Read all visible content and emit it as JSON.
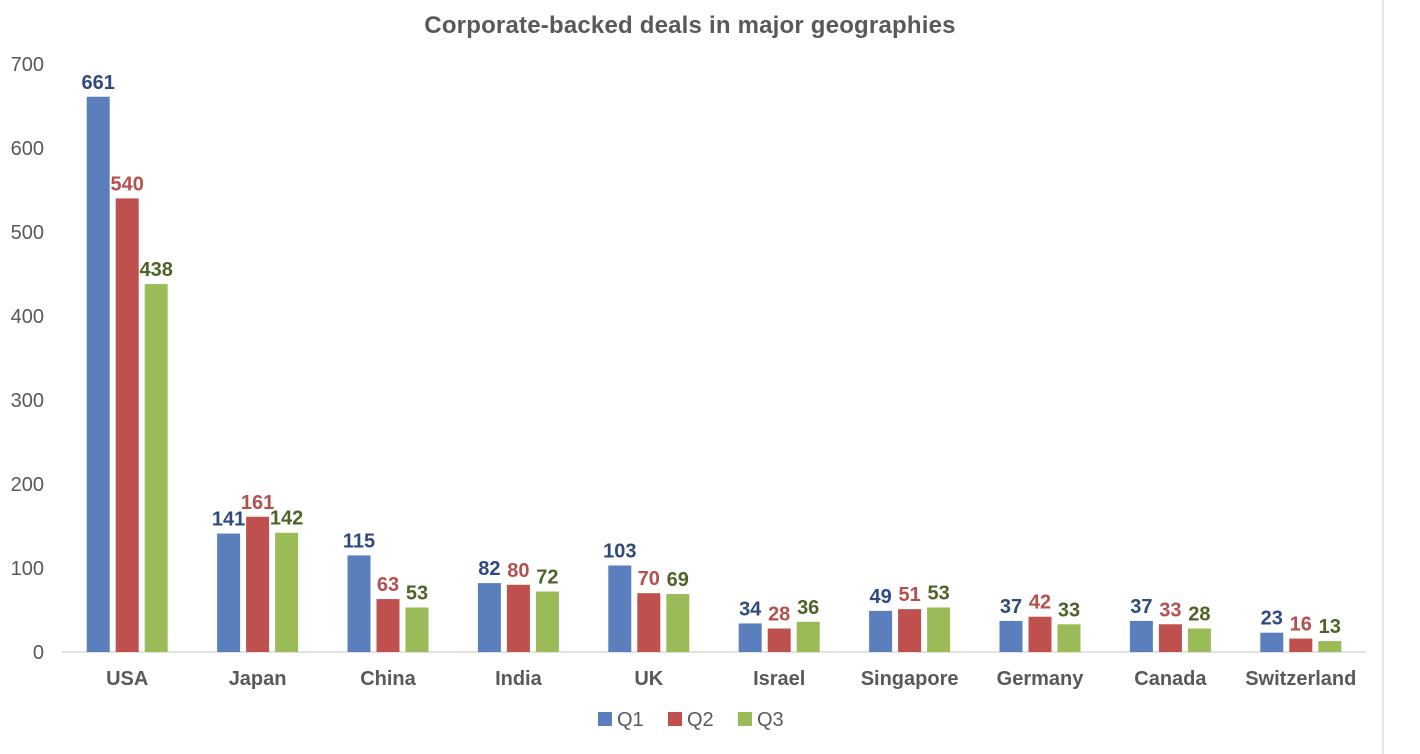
{
  "chart_data": {
    "type": "bar",
    "title": "Corporate-backed deals in major geographies",
    "xlabel": "",
    "ylabel": "",
    "ylim": [
      0,
      700
    ],
    "yticks": [
      0,
      100,
      200,
      300,
      400,
      500,
      600,
      700
    ],
    "grid": false,
    "legend_position": "bottom",
    "data_labels": true,
    "categories": [
      "USA",
      "Japan",
      "China",
      "India",
      "UK",
      "Israel",
      "Singapore",
      "Germany",
      "Canada",
      "Switzerland"
    ],
    "series": [
      {
        "name": "Q1",
        "color": "#5B7FBD",
        "label_color": "#2E4A7E",
        "values": [
          661,
          141,
          115,
          82,
          103,
          34,
          49,
          37,
          37,
          23
        ]
      },
      {
        "name": "Q2",
        "color": "#BE504D",
        "label_color": "#B4504D",
        "values": [
          540,
          161,
          63,
          80,
          70,
          28,
          51,
          42,
          33,
          16
        ]
      },
      {
        "name": "Q3",
        "color": "#9BBB59",
        "label_color": "#4F6228",
        "values": [
          438,
          142,
          53,
          72,
          69,
          36,
          53,
          33,
          28,
          13
        ]
      }
    ]
  },
  "colors": {
    "axis_text": "#595959",
    "axis_line": "#d9d9d9",
    "background": "#ffffff"
  }
}
